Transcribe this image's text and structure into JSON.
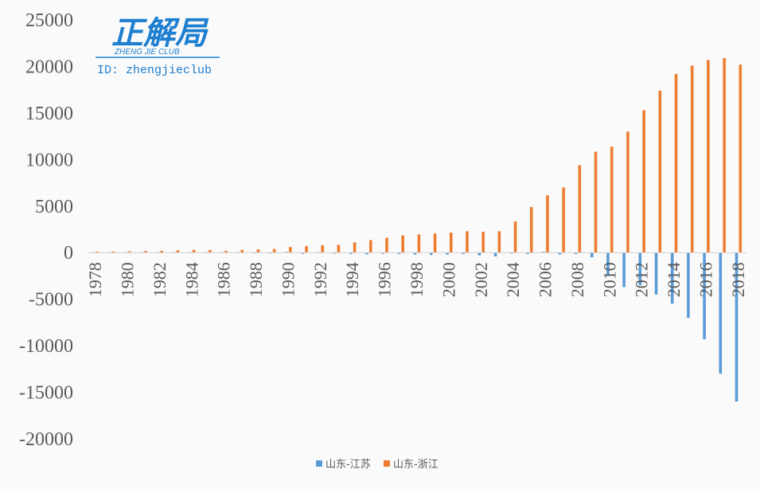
{
  "logo": {
    "title": "正解局",
    "subtitle": "ZHENG JIE CLUB",
    "id_line": "ID: zhengjieclub",
    "color": "#1e7fd0"
  },
  "chart_data": {
    "type": "bar",
    "title": "",
    "xlabel": "",
    "ylabel": "",
    "ylim": [
      -20000,
      25000
    ],
    "yticks": [
      25000,
      20000,
      15000,
      10000,
      5000,
      0,
      -5000,
      -10000,
      -15000,
      -20000
    ],
    "categories": [
      1978,
      1979,
      1980,
      1981,
      1982,
      1983,
      1984,
      1985,
      1986,
      1987,
      1988,
      1989,
      1990,
      1991,
      1992,
      1993,
      1994,
      1995,
      1996,
      1997,
      1998,
      1999,
      2000,
      2001,
      2002,
      2003,
      2004,
      2005,
      2006,
      2007,
      2008,
      2009,
      2010,
      2011,
      2012,
      2013,
      2014,
      2015,
      2016,
      2017,
      2018
    ],
    "xtick_labels": [
      "1978",
      "1980",
      "1982",
      "1984",
      "1986",
      "1988",
      "1990",
      "1992",
      "1994",
      "1996",
      "1998",
      "2000",
      "2002",
      "2004",
      "2006",
      "2008",
      "2010",
      "2012",
      "2014",
      "2016",
      "2018"
    ],
    "legend_position": "bottom",
    "grid": false,
    "series": [
      {
        "name": "山东-江苏",
        "color": "#5b9bd5",
        "values": [
          -50,
          -40,
          -30,
          -40,
          -30,
          -30,
          -50,
          -50,
          -50,
          -60,
          -80,
          -80,
          80,
          -120,
          -60,
          -100,
          -150,
          -180,
          -120,
          -150,
          -200,
          -250,
          -200,
          -150,
          -300,
          -400,
          -100,
          -150,
          100,
          -200,
          -150,
          -500,
          -2500,
          -3700,
          -3500,
          -4500,
          -5500,
          -7000,
          -9300,
          -13000,
          -16000
        ]
      },
      {
        "name": "山东-浙江",
        "color": "#ed7d31",
        "values": [
          100,
          120,
          150,
          180,
          200,
          250,
          300,
          280,
          200,
          300,
          350,
          400,
          600,
          700,
          800,
          850,
          1100,
          1350,
          1600,
          1850,
          1950,
          2050,
          2150,
          2300,
          2250,
          2300,
          3350,
          4900,
          6150,
          7000,
          9400,
          10850,
          11400,
          13000,
          15300,
          17400,
          19200,
          20100,
          20700,
          20900,
          20200
        ]
      }
    ]
  }
}
